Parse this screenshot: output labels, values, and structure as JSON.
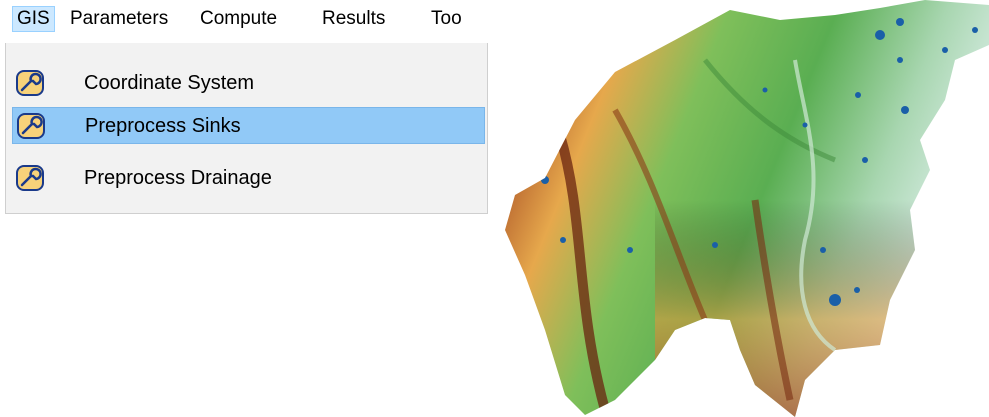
{
  "menubar": {
    "items": [
      {
        "label": "GIS",
        "active": true
      },
      {
        "label": "Parameters"
      },
      {
        "label": "Compute"
      },
      {
        "label": "Results"
      },
      {
        "label": "Too"
      }
    ]
  },
  "gis_menu": {
    "items": [
      {
        "label": "Coordinate System",
        "icon": "wrench-icon",
        "highlighted": false
      },
      {
        "label": "Preprocess Sinks",
        "icon": "wrench-icon",
        "highlighted": true
      },
      {
        "label": "Preprocess Drainage",
        "icon": "wrench-icon",
        "highlighted": false
      }
    ]
  },
  "map": {
    "colors": {
      "lowland": "#cfe6d6",
      "mid": "#58b050",
      "high": "#e0a040",
      "ridge": "#7a2e14",
      "lakes": "#1a5fa8"
    }
  }
}
